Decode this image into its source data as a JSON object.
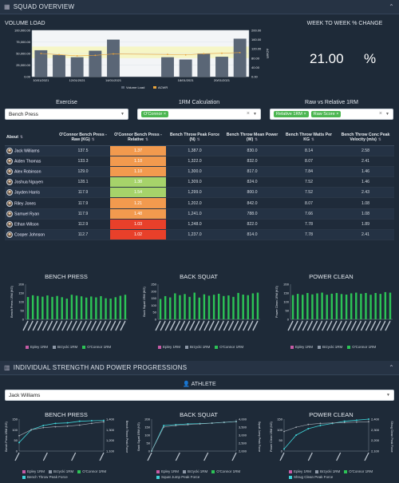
{
  "squad_header": {
    "title": "SQUAD OVERVIEW"
  },
  "volume_load": {
    "title": "VOLUME LOAD",
    "y_ticks_left": [
      "100,000.00",
      "75,000.00",
      "50,000.00",
      "25,000.00",
      "0.00"
    ],
    "y_ticks_right": [
      "200.00",
      "160.00",
      "120.00",
      "80.00",
      "40.00",
      "0.00"
    ],
    "right_axis_label": "ACWR",
    "x_ticks": [
      "10/01/2021",
      "12/01/2021",
      "14/01/2021",
      "18/01/2021",
      "20/01/2021"
    ],
    "legend_volume": "Volume Load",
    "legend_acwr": "ACWR",
    "bar_color": "#5a6676",
    "acwr_color": "#e8a33c",
    "band_color": "#f6f6c6"
  },
  "week_change": {
    "title": "WEEK TO WEEK % CHANGE",
    "value": "21.00",
    "unit": "%"
  },
  "filters": {
    "exercise": {
      "label": "Exercise",
      "value": "Bench Press"
    },
    "calc": {
      "label": "1RM Calculation",
      "value": "O'Connor"
    },
    "raw_rel": {
      "label": "Raw vs Relative 1RM",
      "values": [
        "Relative 1RM",
        "Raw Score"
      ]
    }
  },
  "table": {
    "headers": [
      "About",
      "O'Connor Bench Press - Raw (KG)",
      "O'Connor Bench Press - Relative",
      "Bench Throw Peak Force (N)",
      "Bench Throw Mean Power (W)",
      "Bench Throw Watts Per KG",
      "Bench Throw Conc Peak Velocity (m/s)"
    ],
    "rows": [
      {
        "name": "Jack Williams",
        "raw": "137.5",
        "rel": "1.37",
        "force": "1,387.0",
        "power": "830.0",
        "wpk": "8.14",
        "vel": "2.58",
        "color": "#f29a4e"
      },
      {
        "name": "Aiden Thomas",
        "raw": "133.3",
        "rel": "1.10",
        "force": "1,322.0",
        "power": "832.0",
        "wpk": "8.07",
        "vel": "2.41",
        "color": "#f29a4e"
      },
      {
        "name": "Alex Robinson",
        "raw": "129.0",
        "rel": "1.10",
        "force": "1,300.0",
        "power": "817.0",
        "wpk": "7.84",
        "vel": "1.46",
        "color": "#f29a4e"
      },
      {
        "name": "Joshua Nguyen",
        "raw": "128.1",
        "rel": "1.38",
        "force": "1,309.0",
        "power": "824.0",
        "wpk": "7.52",
        "vel": "1.46",
        "color": "#a6d36a"
      },
      {
        "name": "Jayden Harris",
        "raw": "117.9",
        "rel": "1.54",
        "force": "1,299.0",
        "power": "800.0",
        "wpk": "7.52",
        "vel": "2.43",
        "color": "#a6d36a"
      },
      {
        "name": "Riley Jones",
        "raw": "117.9",
        "rel": "1.21",
        "force": "1,202.0",
        "power": "842.0",
        "wpk": "8.07",
        "vel": "1.08",
        "color": "#f29a4e"
      },
      {
        "name": "Samuel Ryan",
        "raw": "117.9",
        "rel": "1.48",
        "force": "1,241.0",
        "power": "788.0",
        "wpk": "7.66",
        "vel": "1.08",
        "color": "#f29a4e"
      },
      {
        "name": "Ethan Wilson",
        "raw": "112.9",
        "rel": "1.03",
        "force": "1,248.0",
        "power": "822.0",
        "wpk": "7.78",
        "vel": "1.89",
        "color": "#e8402a"
      },
      {
        "name": "Cooper Johnson",
        "raw": "112.7",
        "rel": "1.02",
        "force": "1,237.0",
        "power": "814.0",
        "wpk": "7.78",
        "vel": "2.41",
        "color": "#e8402a"
      }
    ]
  },
  "mini_charts": [
    {
      "title": "BENCH PRESS",
      "ylabel": "Bench Press 1RM (KG)",
      "y_ticks": [
        "200",
        "150",
        "100",
        "50",
        "0"
      ],
      "legend": [
        "Epley 1RM",
        "Brzycki 1RM",
        "O'Connor 1RM"
      ]
    },
    {
      "title": "BACK SQUAT",
      "ylabel": "Back Squat 1RM (KG)",
      "y_ticks": [
        "250",
        "200",
        "150",
        "100",
        "50",
        "0"
      ],
      "legend": [
        "Epley 1RM",
        "Brzycki 1RM",
        "O'Connor 1RM"
      ]
    },
    {
      "title": "POWER CLEAN",
      "ylabel": "Power Clean 1RM (KG)",
      "y_ticks": [
        "200",
        "150",
        "100",
        "50",
        "0"
      ],
      "legend": [
        "Epley 1RM",
        "Brzycki 1RM",
        "O'Connor 1RM"
      ]
    }
  ],
  "legend_colors": {
    "epley": "#c65ba5",
    "brzycki": "#8c97a6",
    "oconnor": "#2cc356",
    "secondary": "#3fd1d6"
  },
  "individual_header": {
    "title": "INDIVIDUAL STRENGTH AND POWER PROGRESSIONS"
  },
  "athlete": {
    "label": "ATHLETE",
    "value": "Jack Williams"
  },
  "progress_charts": [
    {
      "title": "BENCH PRESS",
      "ylabel": "Bench Press 1RM (KG)",
      "y2label": "Bench Throw Peak Force",
      "y_ticks": [
        "150",
        "100",
        "50",
        "0"
      ],
      "y2_ticks": [
        "1,400",
        "1,300",
        "1,200",
        "1,100"
      ],
      "legend": [
        "Epley 1RM",
        "Brzycki 1RM",
        "O'Connor 1RM",
        "Bench Throw Peak Force"
      ]
    },
    {
      "title": "BACK SQUAT",
      "ylabel": "Back Squat 1RM (KG)",
      "y2label": "Squat Jump Peak Force",
      "y_ticks": [
        "200",
        "150",
        "100",
        "50",
        "0"
      ],
      "y2_ticks": [
        "4,000",
        "3,500",
        "3,000",
        "2,500",
        "2,000"
      ],
      "legend": [
        "Epley 1RM",
        "Brzycki 1RM",
        "O'Connor 1RM",
        "Squat Jump Peak Force"
      ]
    },
    {
      "title": "POWER CLEAN",
      "ylabel": "Power Clean 1RM (KG)",
      "y2label": "Shrug Clean Peak Force",
      "y_ticks": [
        "150",
        "100",
        "50",
        "0"
      ],
      "y2_ticks": [
        "2,400",
        "2,300",
        "2,200",
        "2,100"
      ],
      "legend": [
        "Epley 1RM",
        "Brzycki 1RM",
        "O'Connor 1RM",
        "Shrug Clean Peak Force"
      ]
    }
  ],
  "chart_data": [
    {
      "type": "bar",
      "title": "VOLUME LOAD",
      "categories": [
        "10/01/2021",
        "11/01/2021",
        "12/01/2021",
        "13/01/2021",
        "14/01/2021",
        "15/01/2021",
        "16/01/2021",
        "17/01/2021",
        "18/01/2021",
        "19/01/2021",
        "20/01/2021",
        "21/01/2021"
      ],
      "series": [
        {
          "name": "Volume Load",
          "values": [
            57000,
            47000,
            42000,
            56000,
            80000,
            0,
            0,
            42000,
            37000,
            50000,
            43000,
            82000
          ]
        },
        {
          "name": "ACWR",
          "type": "line",
          "values": [
            100,
            95,
            90,
            92,
            98,
            0,
            0,
            96,
            94,
            99,
            101,
            104
          ]
        }
      ],
      "ylim": [
        0,
        100000
      ],
      "y2lim": [
        0,
        200
      ],
      "y2label": "ACWR"
    },
    {
      "type": "bar",
      "title": "BENCH PRESS",
      "categories": [
        "1",
        "2",
        "3",
        "4",
        "5",
        "6",
        "7",
        "8",
        "9",
        "10",
        "11",
        "12",
        "13",
        "14",
        "15",
        "16",
        "17",
        "18",
        "19",
        "20",
        "21"
      ],
      "series": [
        {
          "name": "O'Connor 1RM",
          "values": [
            127,
            137,
            133,
            129,
            136,
            128,
            133,
            126,
            118,
            140,
            135,
            131,
            124,
            130,
            125,
            132,
            120,
            118,
            126,
            134,
            140
          ]
        }
      ],
      "ylim": [
        0,
        200
      ],
      "ylabel": "Bench Press 1RM (KG)"
    },
    {
      "type": "bar",
      "title": "BACK SQUAT",
      "categories": [
        "1",
        "2",
        "3",
        "4",
        "5",
        "6",
        "7",
        "8",
        "9",
        "10",
        "11",
        "12",
        "13",
        "14",
        "15",
        "16",
        "17",
        "18",
        "19",
        "20",
        "21"
      ],
      "series": [
        {
          "name": "O'Connor 1RM",
          "values": [
            145,
            165,
            156,
            185,
            172,
            180,
            160,
            190,
            155,
            178,
            168,
            175,
            182,
            166,
            170,
            160,
            188,
            176,
            172,
            185,
            190
          ]
        }
      ],
      "ylim": [
        0,
        250
      ],
      "ylabel": "Back Squat 1RM (KG)"
    },
    {
      "type": "bar",
      "title": "POWER CLEAN",
      "categories": [
        "1",
        "2",
        "3",
        "4",
        "5",
        "6",
        "7",
        "8",
        "9",
        "10",
        "11",
        "12",
        "13",
        "14",
        "15",
        "16",
        "17",
        "18",
        "19",
        "20",
        "21"
      ],
      "series": [
        {
          "name": "O'Connor 1RM",
          "values": [
            138,
            145,
            140,
            150,
            142,
            148,
            152,
            140,
            146,
            150,
            144,
            141,
            148,
            152,
            146,
            150,
            140,
            150,
            145,
            155,
            152
          ]
        }
      ],
      "ylim": [
        0,
        200
      ],
      "ylabel": "Power Clean 1RM (KG)"
    },
    {
      "type": "line",
      "title": "BENCH PRESS",
      "x": [
        1,
        2,
        3,
        4,
        5,
        6,
        7,
        8
      ],
      "series": [
        {
          "name": "O'Connor 1RM",
          "values": [
            72,
            100,
            110,
            114,
            117,
            122,
            130,
            137
          ]
        },
        {
          "name": "Bench Throw Peak Force",
          "axis": "right",
          "values": [
            1180,
            1300,
            1340,
            1360,
            1365,
            1380,
            1385,
            1387
          ]
        }
      ],
      "ylim": [
        0,
        150
      ],
      "y2lim": [
        1100,
        1400
      ]
    },
    {
      "type": "line",
      "title": "BACK SQUAT",
      "x": [
        1,
        2,
        3,
        4,
        5,
        6,
        7,
        8
      ],
      "series": [
        {
          "name": "O'Connor 1RM",
          "values": [
            0,
            150,
            160,
            165,
            170,
            175,
            180,
            185
          ]
        },
        {
          "name": "Squat Jump Peak Force",
          "axis": "right",
          "values": [
            2000,
            3600,
            3650,
            3700,
            3720,
            3750,
            3800,
            3850
          ]
        }
      ],
      "ylim": [
        0,
        200
      ],
      "y2lim": [
        2000,
        4000
      ]
    },
    {
      "type": "line",
      "title": "POWER CLEAN",
      "x": [
        1,
        2,
        3,
        4,
        5,
        6,
        7,
        8
      ],
      "series": [
        {
          "name": "O'Connor 1RM",
          "values": [
            92,
            112,
            125,
            130,
            132,
            134,
            136,
            138
          ]
        },
        {
          "name": "Shrug Clean Peak Force",
          "axis": "right",
          "values": [
            2120,
            2250,
            2310,
            2340,
            2360,
            2380,
            2390,
            2400
          ]
        }
      ],
      "ylim": [
        0,
        150
      ],
      "y2lim": [
        2100,
        2400
      ]
    }
  ]
}
